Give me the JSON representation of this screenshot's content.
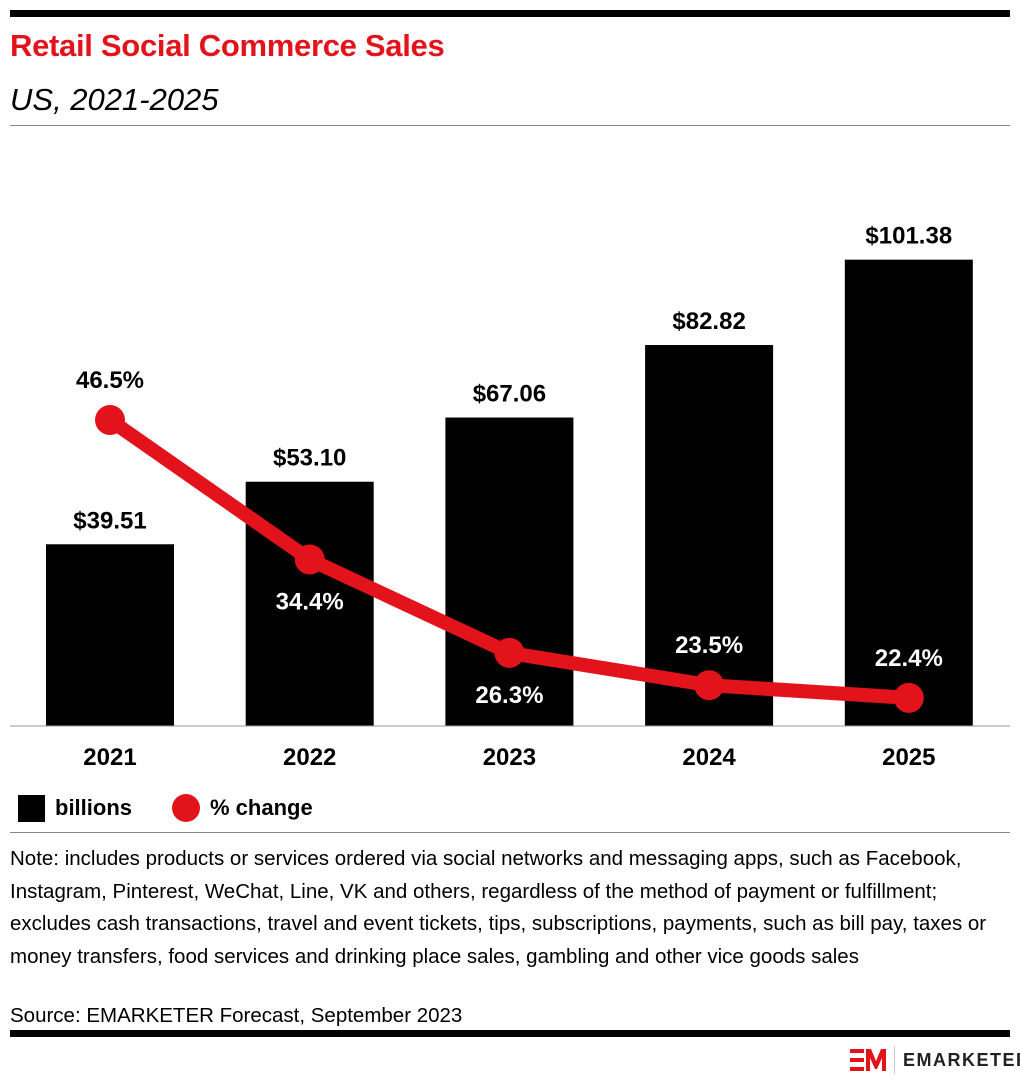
{
  "title": "Retail Social Commerce Sales",
  "subtitle": "US, 2021-2025",
  "chart_data": {
    "type": "bar+line",
    "categories": [
      "2021",
      "2022",
      "2023",
      "2024",
      "2025"
    ],
    "series": [
      {
        "name": "billions",
        "type": "bar",
        "values": [
          39.51,
          53.1,
          67.06,
          82.82,
          101.38
        ],
        "labels": [
          "$39.51",
          "$53.10",
          "$67.06",
          "$82.82",
          "$101.38"
        ],
        "color": "#000000"
      },
      {
        "name": "% change",
        "type": "line",
        "values": [
          46.5,
          34.4,
          26.3,
          23.5,
          22.4
        ],
        "labels": [
          "46.5%",
          "34.4%",
          "26.3%",
          "23.5%",
          "22.4%"
        ],
        "color": "#e3131b"
      }
    ],
    "grid": false,
    "legend": "bottom-left"
  },
  "legend": {
    "bars": "billions",
    "line": "% change"
  },
  "note": "Note: includes products or services ordered via social networks and messaging apps, such as Facebook, Instagram, Pinterest, WeChat, Line, VK and others, regardless of the method of payment or fulfillment; excludes cash transactions, travel and event tickets, tips, subscriptions, payments, such as bill pay, taxes or money transfers, food services and drinking place sales, gambling and other vice goods sales",
  "source": "Source: EMARKETER Forecast, September 2023",
  "brand": "EMARKETER"
}
